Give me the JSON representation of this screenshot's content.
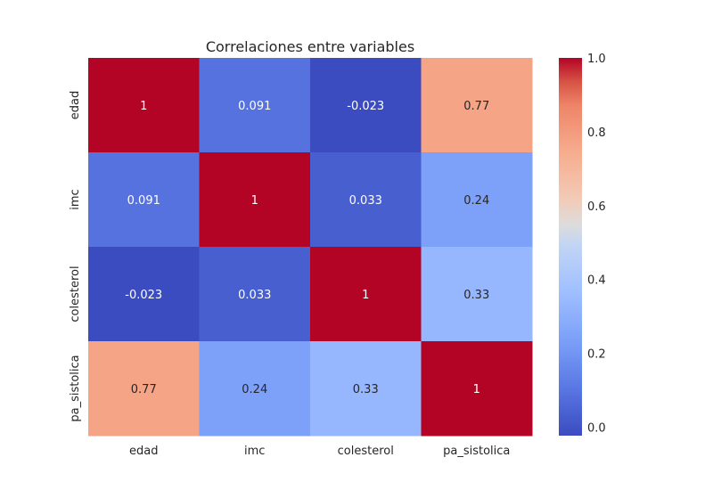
{
  "chart_data": {
    "type": "heatmap",
    "title": "Correlaciones entre variables",
    "xlabel": "",
    "ylabel": "",
    "x_categories": [
      "edad",
      "imc",
      "colesterol",
      "pa_sistolica"
    ],
    "y_categories": [
      "edad",
      "imc",
      "colesterol",
      "pa_sistolica"
    ],
    "values": [
      [
        1,
        0.091,
        -0.023,
        0.77
      ],
      [
        0.091,
        1,
        0.033,
        0.24
      ],
      [
        -0.023,
        0.033,
        1,
        0.33
      ],
      [
        0.77,
        0.24,
        0.33,
        1
      ]
    ],
    "cell_labels": [
      [
        "1",
        "0.091",
        "-0.023",
        "0.77"
      ],
      [
        "0.091",
        "1",
        "0.033",
        "0.24"
      ],
      [
        "-0.023",
        "0.033",
        "1",
        "0.33"
      ],
      [
        "0.77",
        "0.24",
        "0.33",
        "1"
      ]
    ],
    "colormap": "coolwarm",
    "colorbar": {
      "min": -0.023,
      "max": 1,
      "ticks": [
        0.0,
        0.2,
        0.4,
        0.6,
        0.8,
        1.0
      ],
      "tick_labels": [
        "0.0",
        "0.2",
        "0.4",
        "0.6",
        "0.8",
        "1.0"
      ]
    },
    "grid": false
  }
}
